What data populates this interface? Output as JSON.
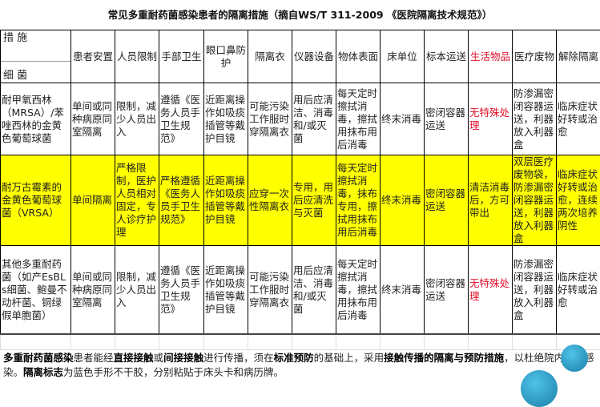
{
  "title": "常见多重耐药菌感染患者的隔离措施（摘自WS/T 311-2009 《医院隔离技术规范》）",
  "corner": {
    "top": "措 施",
    "bottom": "细 菌"
  },
  "headers": [
    "患者安置",
    "人员限制",
    "手部卫生",
    "眼口鼻防护",
    "隔离衣",
    "仪器设备",
    "物体表面",
    "床单位",
    "标本运送",
    "生活物品",
    "医疗废物",
    "解除隔离"
  ],
  "rows": [
    {
      "bacteria": "耐甲氧西林（MRSA）/苯唑西林的金黄色葡萄球菌",
      "highlight": false,
      "cells": [
        "单间或同种病原同室隔离",
        "限制，减少人员出入",
        "遵循《医务人员手卫生规范》",
        "近距离操作如吸痰插管等戴护目镜",
        "可能污染工作服时穿隔离衣",
        "用后应清洁、消毒和/或灭菌",
        "每天定时擦拭消毒，擦拭用抹布用后消毒",
        "终末消毒",
        "密闭容器运送",
        "无特殊处理",
        "防渗漏密闭容器运送，利器放入利器盒",
        "临床症状好转或治愈"
      ]
    },
    {
      "bacteria": "耐万古霉素的金黄色葡萄球菌（VRSA）",
      "highlight": true,
      "cells": [
        "单间隔离",
        "严格限制，医护人员相对固定，专人诊疗护理",
        "严格遵循《医务人员手卫生规范》",
        "近距离操作如吸痰插管等戴护目镜",
        "应穿一次性隔离衣",
        "专用，用后应清洗与灭菌",
        "每天定时擦拭消毒，抹布专用，擦拭用抹布用后消毒",
        "终末消毒",
        "密闭容器运送",
        "清洁消毒后，方可带出",
        "双层医疗废物袋，防渗漏密闭容器运送，利器放入利器盒",
        "临床症状好转或治愈，连续两次培养阴性"
      ]
    },
    {
      "bacteria": "其他多重耐药菌（如产EsBLs细菌、鲍曼不动杆菌、铜绿假单胞菌）",
      "highlight": false,
      "cells": [
        "单间或同种病原同室隔离",
        "限制，减少人员出入",
        "遵循《医务人员手卫生规范》",
        "近距离操作如吸痰插管等戴护目镜",
        "可能污染工作服时穿隔离衣",
        "用后应清洁、消毒和/或灭菌",
        "每天定时擦拭消毒，擦拭用抹布用后消毒",
        "终末消毒",
        "密闭容器运送",
        "无特殊处理",
        "防渗漏密闭容器运送，利器放入利器盒",
        "临床症状好转或治愈"
      ]
    }
  ],
  "red_column": "生活物品",
  "colors": {
    "highlight": "#ffff00",
    "red_text": "#e0102a"
  },
  "note": {
    "p1b": "多重耐药菌感染",
    "p2": "患者能经",
    "p3b": "直接接触",
    "p4": "或",
    "p5b": "间接接触",
    "p6": "进行传播，须在",
    "p7b": "标准预防",
    "p8": "的基础上，采用",
    "p9b": "接触传播的隔离与预防措施",
    "p10": "，以杜绝院内交叉感染。",
    "p11b": "隔离标志",
    "p12": "为蓝色手形不干胶，分别粘贴于床头卡和病历牌。"
  }
}
